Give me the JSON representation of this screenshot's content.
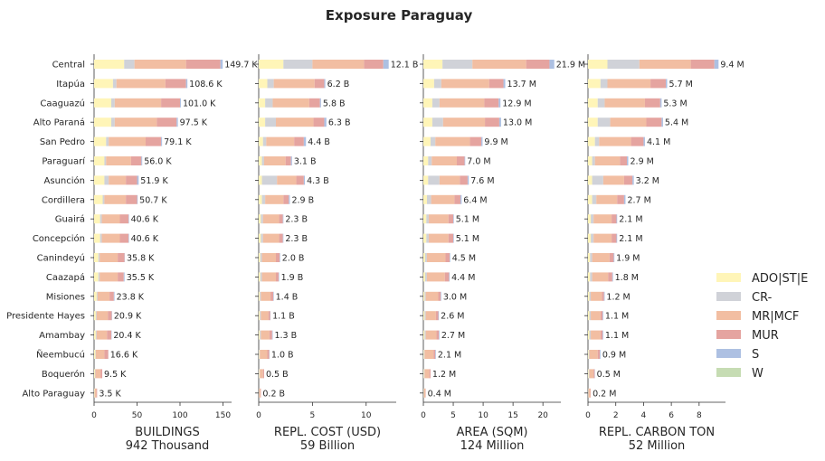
{
  "chart_data": {
    "type": "bar",
    "orientation": "horizontal",
    "stacked": true,
    "title": "Exposure Paraguay",
    "categories": [
      "Central",
      "Itapúa",
      "Caaguazú",
      "Alto Paraná",
      "San Pedro",
      "Paraguarí",
      "Asunción",
      "Cordillera",
      "Guairá",
      "Concepción",
      "Canindeyú",
      "Caazapá",
      "Misiones",
      "Presidente Hayes",
      "Amambay",
      "Ñeembucú",
      "Boquerón",
      "Alto Paraguay"
    ],
    "legend": {
      "placement": "right",
      "entries": [
        {
          "name": "ADO|ST|E",
          "color": "#fff5b8"
        },
        {
          "name": "CR-",
          "color": "#d0d2d8"
        },
        {
          "name": "MR|MCF",
          "color": "#f2bea2"
        },
        {
          "name": "MUR",
          "color": "#e5a4a0"
        },
        {
          "name": "S",
          "color": "#adc0e2"
        },
        {
          "name": "W",
          "color": "#c6dcb3"
        }
      ]
    },
    "panels": [
      {
        "key": "buildings",
        "xlabel": "BUILDINGS",
        "subtitle": "942 Thousand",
        "xlim": [
          0,
          160
        ],
        "xticks": [
          0,
          50,
          100,
          150
        ],
        "xtick_labels": [
          "0",
          "50",
          "100",
          "150"
        ],
        "labels": [
          "149.7 K",
          "108.6 K",
          "101.0 K",
          "97.5 K",
          "79.1 K",
          "56.0 K",
          "51.9 K",
          "50.7 K",
          "40.6 K",
          "40.6 K",
          "35.8 K",
          "35.5 K",
          "23.8 K",
          "20.9 K",
          "20.4 K",
          "16.6 K",
          "9.5 K",
          "3.5 K"
        ],
        "series": [
          {
            "name": "ADO|ST|E",
            "values": [
              35,
              22,
              20,
              20,
              14,
              12,
              12,
              10,
              7,
              7,
              5,
              5,
              3,
              2,
              2,
              1.5,
              1,
              0.5
            ]
          },
          {
            "name": "CR-",
            "values": [
              12,
              4,
              4,
              4,
              3,
              2,
              5,
              2,
              2,
              2,
              1.5,
              1.5,
              1,
              1,
              1,
              0.5,
              0.5,
              0.2
            ]
          },
          {
            "name": "MR|MCF",
            "values": [
              60,
              57,
              54,
              49,
              43,
              29,
              20,
              25,
              21,
              21,
              21,
              21,
              14,
              13,
              12,
              10,
              6,
              2
            ]
          },
          {
            "name": "MUR",
            "values": [
              40,
              24,
              22,
              23,
              18,
              12,
              13,
              13,
              10,
              10,
              8,
              7,
              5,
              4.5,
              5,
              4.5,
              2,
              0.8
            ]
          },
          {
            "name": "S",
            "values": [
              2.7,
              1.6,
              1,
              1.5,
              1.1,
              1,
              1.9,
              0.7,
              0.6,
              0.6,
              0.3,
              1,
              0.8,
              0.4,
              0.4,
              0.1,
              0,
              0
            ]
          },
          {
            "name": "W",
            "values": [
              0,
              0,
              0,
              0,
              0,
              0,
              0,
              0,
              0,
              0,
              0,
              0,
              0,
              0,
              0,
              0,
              0,
              0
            ]
          }
        ]
      },
      {
        "key": "repl_cost",
        "xlabel": "REPL. COST (USD)",
        "subtitle": "59 Billion",
        "xlim": [
          0,
          12.8
        ],
        "xticks": [
          0,
          5,
          10
        ],
        "xtick_labels": [
          "0",
          "5",
          "10"
        ],
        "labels": [
          "12.1 B",
          "6.2 B",
          "5.8 B",
          "6.3 B",
          "4.4 B",
          "3.1 B",
          "4.3 B",
          "2.9 B",
          "2.3 B",
          "2.3 B",
          "2.0 B",
          "1.9 B",
          "1.4 B",
          "1.1 B",
          "1.3 B",
          "1.0 B",
          "0.5 B",
          "0.2 B"
        ],
        "series": [
          {
            "name": "ADO|ST|E",
            "values": [
              2.3,
              0.8,
              0.6,
              0.6,
              0.4,
              0.3,
              0.3,
              0.3,
              0.2,
              0.2,
              0.15,
              0.15,
              0.1,
              0.1,
              0.1,
              0.05,
              0.05,
              0.02
            ]
          },
          {
            "name": "CR-",
            "values": [
              2.7,
              0.6,
              0.7,
              1.0,
              0.3,
              0.2,
              1.4,
              0.3,
              0.2,
              0.2,
              0.15,
              0.15,
              0.1,
              0.1,
              0.1,
              0.05,
              0.05,
              0.02
            ]
          },
          {
            "name": "MR|MCF",
            "values": [
              4.8,
              3.8,
              3.4,
              3.5,
              2.6,
              2.0,
              1.8,
              1.7,
              1.5,
              1.5,
              1.3,
              1.3,
              0.9,
              0.7,
              0.8,
              0.7,
              0.3,
              0.12
            ]
          },
          {
            "name": "MUR",
            "values": [
              1.8,
              0.9,
              1.0,
              1.0,
              0.9,
              0.5,
              0.7,
              0.5,
              0.35,
              0.35,
              0.35,
              0.25,
              0.25,
              0.17,
              0.25,
              0.17,
              0.1,
              0.04
            ]
          },
          {
            "name": "S",
            "values": [
              0.5,
              0.1,
              0.1,
              0.2,
              0.2,
              0.1,
              0.1,
              0.1,
              0.05,
              0.05,
              0.05,
              0.05,
              0.05,
              0.03,
              0.05,
              0.03,
              0,
              0
            ]
          },
          {
            "name": "W",
            "values": [
              0,
              0,
              0,
              0,
              0,
              0,
              0,
              0,
              0,
              0,
              0,
              0,
              0,
              0,
              0,
              0,
              0,
              0
            ]
          }
        ]
      },
      {
        "key": "area",
        "xlabel": "AREA (SQM)",
        "subtitle": "124 Million",
        "xlim": [
          0,
          23
        ],
        "xticks": [
          0,
          5,
          10,
          15,
          20
        ],
        "xtick_labels": [
          "0",
          "5",
          "10",
          "15",
          "20"
        ],
        "labels": [
          "21.9 M",
          "13.7 M",
          "12.9 M",
          "13.0 M",
          "9.9 M",
          "7.0 M",
          "7.6 M",
          "6.4 M",
          "5.1 M",
          "5.1 M",
          "4.5 M",
          "4.4 M",
          "3.0 M",
          "2.6 M",
          "2.7 M",
          "2.1 M",
          "1.2 M",
          "0.4 M"
        ],
        "series": [
          {
            "name": "ADO|ST|E",
            "values": [
              3.2,
              1.8,
              1.5,
              1.5,
              1.2,
              0.8,
              0.8,
              0.6,
              0.5,
              0.5,
              0.3,
              0.3,
              0.2,
              0.2,
              0.2,
              0.1,
              0.1,
              0.05
            ]
          },
          {
            "name": "CR-",
            "values": [
              5.0,
              1.2,
              1.2,
              1.8,
              0.8,
              0.6,
              1.9,
              0.7,
              0.4,
              0.4,
              0.3,
              0.3,
              0.2,
              0.2,
              0.2,
              0.1,
              0.1,
              0.05
            ]
          },
          {
            "name": "MR|MCF",
            "values": [
              9.0,
              8.0,
              7.5,
              7.0,
              5.8,
              4.2,
              3.4,
              3.9,
              3.3,
              3.3,
              3.1,
              3.0,
              2.1,
              1.7,
              1.8,
              1.5,
              0.8,
              0.25
            ]
          },
          {
            "name": "MUR",
            "values": [
              3.9,
              2.4,
              2.4,
              2.4,
              1.9,
              1.3,
              1.3,
              1.0,
              0.8,
              0.8,
              0.7,
              0.7,
              0.4,
              0.4,
              0.4,
              0.3,
              0.2,
              0.05
            ]
          },
          {
            "name": "S",
            "values": [
              0.8,
              0.3,
              0.3,
              0.3,
              0.2,
              0.1,
              0.2,
              0.2,
              0.1,
              0.1,
              0.1,
              0.1,
              0.1,
              0.1,
              0.1,
              0.1,
              0,
              0
            ]
          },
          {
            "name": "W",
            "values": [
              0,
              0,
              0,
              0,
              0,
              0,
              0,
              0,
              0,
              0,
              0,
              0,
              0,
              0,
              0,
              0,
              0,
              0
            ]
          }
        ]
      },
      {
        "key": "carbon",
        "xlabel": "REPL. CARBON TON",
        "subtitle": "52 Million",
        "xlim": [
          0,
          9.9
        ],
        "xticks": [
          0,
          2,
          4,
          6,
          8
        ],
        "xtick_labels": [
          "0",
          "2",
          "4",
          "6",
          "8"
        ],
        "labels": [
          "9.4 M",
          "5.7 M",
          "5.3 M",
          "5.4 M",
          "4.1 M",
          "2.9 M",
          "3.2 M",
          "2.7 M",
          "2.1 M",
          "2.1 M",
          "1.9 M",
          "1.8 M",
          "1.2 M",
          "1.1 M",
          "1.1 M",
          "0.9 M",
          "0.5 M",
          "0.2 M"
        ],
        "series": [
          {
            "name": "ADO|ST|E",
            "values": [
              1.4,
              0.9,
              0.7,
              0.7,
              0.5,
              0.3,
              0.3,
              0.3,
              0.2,
              0.2,
              0.15,
              0.15,
              0.1,
              0.1,
              0.1,
              0.05,
              0.05,
              0.02
            ]
          },
          {
            "name": "CR-",
            "values": [
              2.3,
              0.5,
              0.5,
              0.9,
              0.3,
              0.2,
              0.8,
              0.3,
              0.2,
              0.2,
              0.15,
              0.15,
              0.1,
              0.1,
              0.1,
              0.05,
              0.05,
              0.02
            ]
          },
          {
            "name": "MR|MCF",
            "values": [
              3.7,
              3.1,
              2.9,
              2.6,
              2.3,
              1.8,
              1.5,
              1.5,
              1.3,
              1.3,
              1.25,
              1.15,
              0.8,
              0.7,
              0.7,
              0.6,
              0.3,
              0.13
            ]
          },
          {
            "name": "MUR",
            "values": [
              1.7,
              1.1,
              1.1,
              1.1,
              0.9,
              0.5,
              0.6,
              0.5,
              0.35,
              0.35,
              0.3,
              0.3,
              0.15,
              0.15,
              0.15,
              0.15,
              0.08,
              0.03
            ]
          },
          {
            "name": "S",
            "values": [
              0.3,
              0.1,
              0.1,
              0.1,
              0.1,
              0.1,
              0.1,
              0.1,
              0.05,
              0.05,
              0.05,
              0.05,
              0.05,
              0.05,
              0.05,
              0.05,
              0.02,
              0
            ]
          },
          {
            "name": "W",
            "values": [
              0,
              0,
              0,
              0,
              0,
              0,
              0,
              0,
              0,
              0,
              0,
              0,
              0,
              0,
              0,
              0,
              0,
              0
            ]
          }
        ]
      }
    ]
  }
}
